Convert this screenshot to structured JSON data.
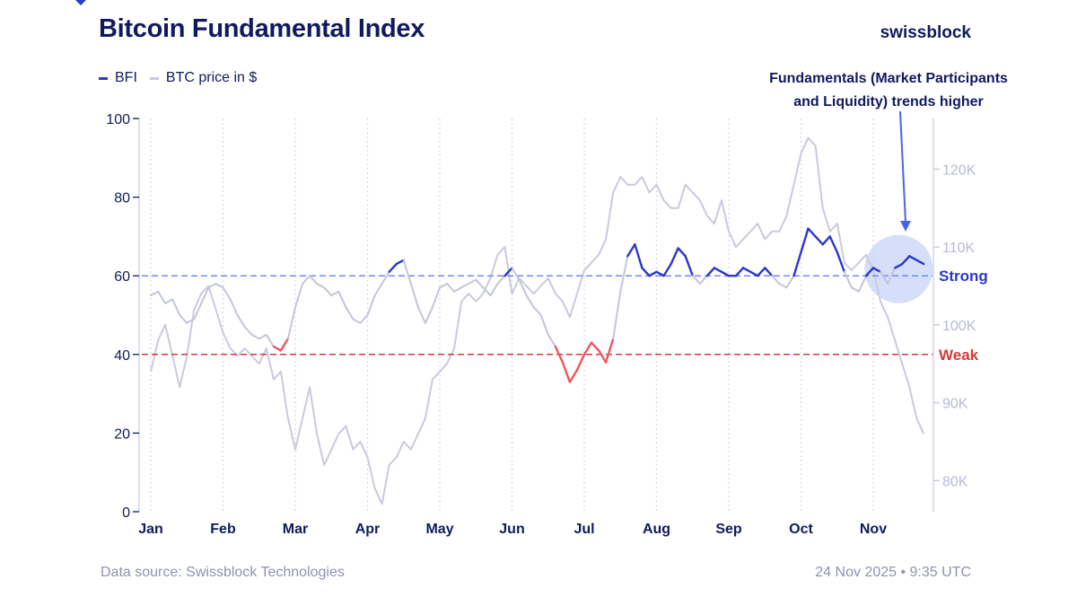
{
  "header": {
    "title": "Bitcoin Fundamental Index",
    "brand": "swissblock"
  },
  "legend": {
    "items": [
      {
        "label": "BFI",
        "color": "#2b38c9"
      },
      {
        "label": "BTC price in $",
        "color": "#c9cbdd"
      }
    ]
  },
  "footer": {
    "source": "Data source: Swissblock Technologies",
    "timestamp": "24 Nov 2025 • 9:35 UTC"
  },
  "colors": {
    "bfi": "#2b38c9",
    "bfi_weak": "#f05560",
    "btc": "#c9cbdd",
    "strong_line": "#6f8bf0",
    "weak_line": "#d23a3a",
    "axis": "#d4d6e3",
    "highlight": "#c7d4f7",
    "annotation_arrow": "#4a64e6"
  },
  "chart_data": {
    "type": "line",
    "title": "Bitcoin Fundamental Index",
    "x_labels": [
      "Jan",
      "Feb",
      "Mar",
      "Apr",
      "May",
      "Jun",
      "Jul",
      "Aug",
      "Sep",
      "Oct",
      "Nov"
    ],
    "x_range": [
      0,
      10.7
    ],
    "y_left": {
      "ticks": [
        0,
        20,
        40,
        60,
        80,
        100
      ],
      "ylim": [
        0,
        100
      ]
    },
    "y_right": {
      "ticks": [
        "80K",
        "90K",
        "100K",
        "110K",
        "120K"
      ],
      "tick_values": [
        80000,
        90000,
        100000,
        110000,
        120000
      ],
      "ylim": [
        76000,
        126500
      ]
    },
    "grid": {
      "vertical_month_lines": true
    },
    "legend_position": "top-left",
    "reference_lines": [
      {
        "label": "Strong",
        "value": 60,
        "color": "#2b38c9"
      },
      {
        "label": "Weak",
        "value": 40,
        "color": "#d23a3a"
      }
    ],
    "annotation": {
      "lines": [
        "Fundamentals (Market Participants",
        "and Liquidity) trends higher"
      ]
    },
    "series": [
      {
        "name": "BFI",
        "axis": "left",
        "color": "#2b38c9",
        "weak_color": "#f05560",
        "x": [
          0,
          0.1,
          0.2,
          0.3,
          0.4,
          0.5,
          0.6,
          0.7,
          0.8,
          0.9,
          1.0,
          1.1,
          1.2,
          1.3,
          1.4,
          1.5,
          1.6,
          1.7,
          1.8,
          1.9,
          2.0,
          2.1,
          2.2,
          2.3,
          2.4,
          2.5,
          2.6,
          2.7,
          2.8,
          2.9,
          3.0,
          3.1,
          3.2,
          3.3,
          3.4,
          3.5,
          3.6,
          3.7,
          3.8,
          3.9,
          4.0,
          4.1,
          4.2,
          4.3,
          4.4,
          4.5,
          4.6,
          4.7,
          4.8,
          4.9,
          5.0,
          5.1,
          5.2,
          5.3,
          5.4,
          5.5,
          5.6,
          5.7,
          5.8,
          5.9,
          6.0,
          6.1,
          6.2,
          6.3,
          6.4,
          6.5,
          6.6,
          6.7,
          6.8,
          6.9,
          7.0,
          7.1,
          7.2,
          7.3,
          7.4,
          7.5,
          7.6,
          7.7,
          7.8,
          7.9,
          8.0,
          8.1,
          8.2,
          8.3,
          8.4,
          8.5,
          8.6,
          8.7,
          8.8,
          8.9,
          9.0,
          9.1,
          9.2,
          9.3,
          9.4,
          9.5,
          9.6,
          9.7,
          9.8,
          9.9,
          10.0,
          10.1,
          10.2,
          10.3,
          10.4,
          10.5,
          10.6,
          10.7
        ],
        "values": [
          55,
          56,
          53,
          54,
          50,
          48,
          49,
          53,
          57,
          58,
          57,
          54,
          50,
          47,
          45,
          44,
          45,
          42,
          41,
          44,
          52,
          58,
          60,
          58,
          57,
          55,
          56,
          52,
          49,
          48,
          50,
          55,
          58,
          61,
          63,
          64,
          58,
          52,
          48,
          52,
          57,
          58,
          56,
          57,
          58,
          59,
          57,
          55,
          58,
          60,
          62,
          59,
          55,
          52,
          50,
          45,
          42,
          38,
          33,
          36,
          40,
          43,
          41,
          38,
          44,
          56,
          65,
          68,
          62,
          60,
          61,
          60,
          63,
          67,
          65,
          60,
          58,
          60,
          62,
          61,
          60,
          60,
          62,
          61,
          60,
          62,
          60,
          58,
          57,
          60,
          66,
          72,
          70,
          68,
          70,
          66,
          61,
          57,
          56,
          60,
          62,
          61,
          58,
          62,
          63,
          65,
          64,
          63
        ]
      },
      {
        "name": "BTC price in $",
        "axis": "right",
        "color": "#c9cbdd",
        "x": [
          0,
          0.1,
          0.2,
          0.3,
          0.4,
          0.5,
          0.6,
          0.7,
          0.8,
          0.9,
          1.0,
          1.1,
          1.2,
          1.3,
          1.4,
          1.5,
          1.6,
          1.7,
          1.8,
          1.9,
          2.0,
          2.1,
          2.2,
          2.3,
          2.4,
          2.5,
          2.6,
          2.7,
          2.8,
          2.9,
          3.0,
          3.1,
          3.2,
          3.3,
          3.4,
          3.5,
          3.6,
          3.7,
          3.8,
          3.9,
          4.0,
          4.1,
          4.2,
          4.3,
          4.4,
          4.5,
          4.6,
          4.7,
          4.8,
          4.9,
          5.0,
          5.1,
          5.2,
          5.3,
          5.4,
          5.5,
          5.6,
          5.7,
          5.8,
          5.9,
          6.0,
          6.1,
          6.2,
          6.3,
          6.4,
          6.5,
          6.6,
          6.7,
          6.8,
          6.9,
          7.0,
          7.1,
          7.2,
          7.3,
          7.4,
          7.5,
          7.6,
          7.7,
          7.8,
          7.9,
          8.0,
          8.1,
          8.2,
          8.3,
          8.4,
          8.5,
          8.6,
          8.7,
          8.8,
          8.9,
          9.0,
          9.1,
          9.2,
          9.3,
          9.4,
          9.5,
          9.6,
          9.7,
          9.8,
          9.9,
          10.0,
          10.1,
          10.2,
          10.3,
          10.4,
          10.5,
          10.6,
          10.7
        ],
        "values": [
          94000,
          98000,
          100000,
          96000,
          92000,
          96000,
          102000,
          104000,
          105000,
          102000,
          99000,
          97000,
          96000,
          97000,
          96000,
          95000,
          97000,
          93000,
          94000,
          88000,
          84000,
          88000,
          92000,
          86000,
          82000,
          84000,
          86000,
          87000,
          84000,
          85000,
          83000,
          79000,
          77000,
          82000,
          83000,
          85000,
          84000,
          86000,
          88000,
          93000,
          94000,
          95000,
          97000,
          103000,
          104000,
          103000,
          104000,
          106000,
          109000,
          110000,
          104000,
          106000,
          105000,
          104000,
          105000,
          106000,
          104000,
          103000,
          101000,
          104000,
          107000,
          108000,
          109000,
          111000,
          117000,
          119000,
          118000,
          118000,
          119000,
          117000,
          118000,
          116000,
          115000,
          115000,
          118000,
          117000,
          116000,
          114000,
          113000,
          116000,
          112000,
          110000,
          111000,
          112000,
          113000,
          111000,
          112000,
          112000,
          114000,
          118000,
          122000,
          124000,
          123000,
          115000,
          112000,
          113000,
          108000,
          107000,
          108000,
          109000,
          107000,
          103000,
          101000,
          98000,
          95000,
          92000,
          88000,
          86000
        ]
      }
    ]
  }
}
